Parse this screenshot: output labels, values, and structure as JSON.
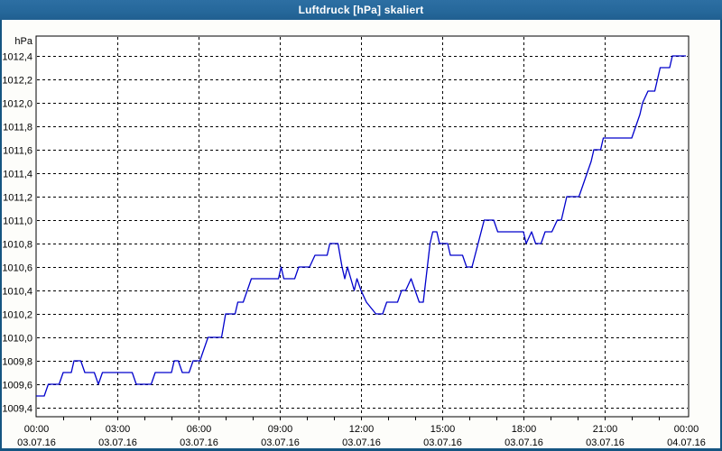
{
  "window": {
    "title": "Luftdruck [hPa] skaliert"
  },
  "colors": {
    "titlebar_bg": "#26689b",
    "titlebar_text": "#ffffff",
    "window_border": "#155581",
    "content_bg": "#fdfdfa",
    "plot_bg": "#ffffff",
    "plot_border": "#000000",
    "grid": "#000000",
    "tick": "#000000",
    "label": "#000000",
    "line": "#0000cc"
  },
  "chart_data": {
    "type": "line",
    "title": "Luftdruck [hPa] skaliert",
    "y_unit_label": "hPa",
    "ylabel": "hPa",
    "xlabel": "",
    "ylim": [
      1009.4,
      1012.4
    ],
    "y_tick_step": 0.2,
    "y_tick_labels": [
      "1012,4",
      "1012,2",
      "1012,0",
      "1011,8",
      "1011,6",
      "1011,4",
      "1011,2",
      "1011,0",
      "1010,8",
      "1010,6",
      "1010,4",
      "1010,2",
      "1010,0",
      "1009,8",
      "1009,6",
      "1009,4"
    ],
    "xlim_hours": [
      0,
      24
    ],
    "x_major_step_hours": 3,
    "x_minor_tick_hours": 1,
    "x_ticks": [
      {
        "time": "00:00",
        "date": "03.07.16"
      },
      {
        "time": "03:00",
        "date": "03.07.16"
      },
      {
        "time": "06:00",
        "date": "03.07.16"
      },
      {
        "time": "09:00",
        "date": "03.07.16"
      },
      {
        "time": "12:00",
        "date": "03.07.16"
      },
      {
        "time": "15:00",
        "date": "03.07.16"
      },
      {
        "time": "18:00",
        "date": "03.07.16"
      },
      {
        "time": "21:00",
        "date": "03.07.16"
      },
      {
        "time": "00:00",
        "date": "04.07.16"
      }
    ],
    "grid": "dashed",
    "legend_position": "none",
    "series": [
      {
        "name": "Luftdruck [hPa]",
        "color": "#0000cc",
        "points_hours_hpa": [
          [
            0.0,
            1009.5
          ],
          [
            0.3,
            1009.5
          ],
          [
            0.45,
            1009.6
          ],
          [
            0.85,
            1009.6
          ],
          [
            1.0,
            1009.7
          ],
          [
            1.3,
            1009.7
          ],
          [
            1.4,
            1009.8
          ],
          [
            1.65,
            1009.8
          ],
          [
            1.8,
            1009.7
          ],
          [
            2.15,
            1009.7
          ],
          [
            2.3,
            1009.6
          ],
          [
            2.45,
            1009.7
          ],
          [
            3.55,
            1009.7
          ],
          [
            3.7,
            1009.6
          ],
          [
            4.25,
            1009.6
          ],
          [
            4.4,
            1009.7
          ],
          [
            5.0,
            1009.7
          ],
          [
            5.1,
            1009.8
          ],
          [
            5.25,
            1009.8
          ],
          [
            5.4,
            1009.7
          ],
          [
            5.65,
            1009.7
          ],
          [
            5.8,
            1009.8
          ],
          [
            6.05,
            1009.8
          ],
          [
            6.35,
            1010.0
          ],
          [
            6.85,
            1010.0
          ],
          [
            7.0,
            1010.2
          ],
          [
            7.35,
            1010.2
          ],
          [
            7.45,
            1010.3
          ],
          [
            7.65,
            1010.3
          ],
          [
            7.95,
            1010.5
          ],
          [
            8.95,
            1010.5
          ],
          [
            9.05,
            1010.6
          ],
          [
            9.15,
            1010.5
          ],
          [
            9.55,
            1010.5
          ],
          [
            9.7,
            1010.6
          ],
          [
            10.1,
            1010.6
          ],
          [
            10.3,
            1010.7
          ],
          [
            10.75,
            1010.7
          ],
          [
            10.85,
            1010.8
          ],
          [
            11.15,
            1010.8
          ],
          [
            11.3,
            1010.6
          ],
          [
            11.4,
            1010.5
          ],
          [
            11.5,
            1010.6
          ],
          [
            11.75,
            1010.4
          ],
          [
            11.85,
            1010.5
          ],
          [
            12.0,
            1010.4
          ],
          [
            12.2,
            1010.3
          ],
          [
            12.55,
            1010.2
          ],
          [
            12.8,
            1010.2
          ],
          [
            12.95,
            1010.3
          ],
          [
            13.35,
            1010.3
          ],
          [
            13.5,
            1010.4
          ],
          [
            13.65,
            1010.4
          ],
          [
            13.85,
            1010.5
          ],
          [
            14.0,
            1010.4
          ],
          [
            14.15,
            1010.3
          ],
          [
            14.3,
            1010.3
          ],
          [
            14.55,
            1010.8
          ],
          [
            14.65,
            1010.9
          ],
          [
            14.8,
            1010.9
          ],
          [
            14.9,
            1010.8
          ],
          [
            15.2,
            1010.8
          ],
          [
            15.3,
            1010.7
          ],
          [
            15.75,
            1010.7
          ],
          [
            15.9,
            1010.6
          ],
          [
            16.1,
            1010.6
          ],
          [
            16.55,
            1011.0
          ],
          [
            16.9,
            1011.0
          ],
          [
            17.05,
            1010.9
          ],
          [
            18.0,
            1010.9
          ],
          [
            18.1,
            1010.8
          ],
          [
            18.3,
            1010.9
          ],
          [
            18.45,
            1010.8
          ],
          [
            18.65,
            1010.8
          ],
          [
            18.8,
            1010.9
          ],
          [
            19.05,
            1010.9
          ],
          [
            19.25,
            1011.0
          ],
          [
            19.4,
            1011.0
          ],
          [
            19.5,
            1011.1
          ],
          [
            19.6,
            1011.2
          ],
          [
            20.05,
            1011.2
          ],
          [
            20.2,
            1011.3
          ],
          [
            20.35,
            1011.4
          ],
          [
            20.5,
            1011.5
          ],
          [
            20.6,
            1011.6
          ],
          [
            20.85,
            1011.6
          ],
          [
            20.95,
            1011.7
          ],
          [
            22.0,
            1011.7
          ],
          [
            22.15,
            1011.8
          ],
          [
            22.3,
            1011.9
          ],
          [
            22.4,
            1012.0
          ],
          [
            22.6,
            1012.1
          ],
          [
            22.85,
            1012.1
          ],
          [
            22.95,
            1012.2
          ],
          [
            23.05,
            1012.3
          ],
          [
            23.4,
            1012.3
          ],
          [
            23.5,
            1012.4
          ],
          [
            24.0,
            1012.4
          ]
        ]
      }
    ]
  }
}
